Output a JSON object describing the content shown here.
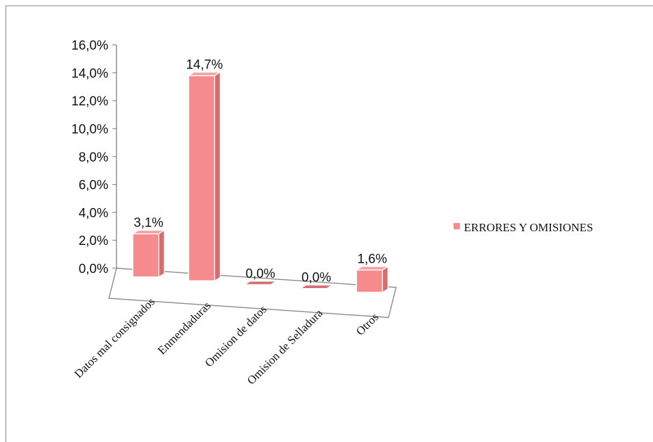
{
  "chart_data": {
    "type": "bar",
    "categories": [
      "Datos mal consignados",
      "Enmendaduras",
      "Omision de datos",
      "Omision de Selladura",
      "Otros"
    ],
    "series": [
      {
        "name": "ERRORES Y OMISIONES",
        "values": [
          3.1,
          14.7,
          0.0,
          0.0,
          1.6
        ],
        "labels": [
          "3,1%",
          "14,7%",
          "0,0%",
          "0,0%",
          "1,6%"
        ]
      }
    ],
    "yticks": [
      "0,0%",
      "2,0%",
      "4,0%",
      "6,0%",
      "8,0%",
      "10,0%",
      "12,0%",
      "14,0%",
      "16,0%"
    ],
    "ylim": [
      0,
      16
    ],
    "style": "3d-column",
    "legend_position": "right",
    "colors": {
      "bar_front": "#f58b8c",
      "bar_side": "#d46e70",
      "bar_top": "#f4a2a3",
      "axis": "#8a8a8a"
    }
  }
}
